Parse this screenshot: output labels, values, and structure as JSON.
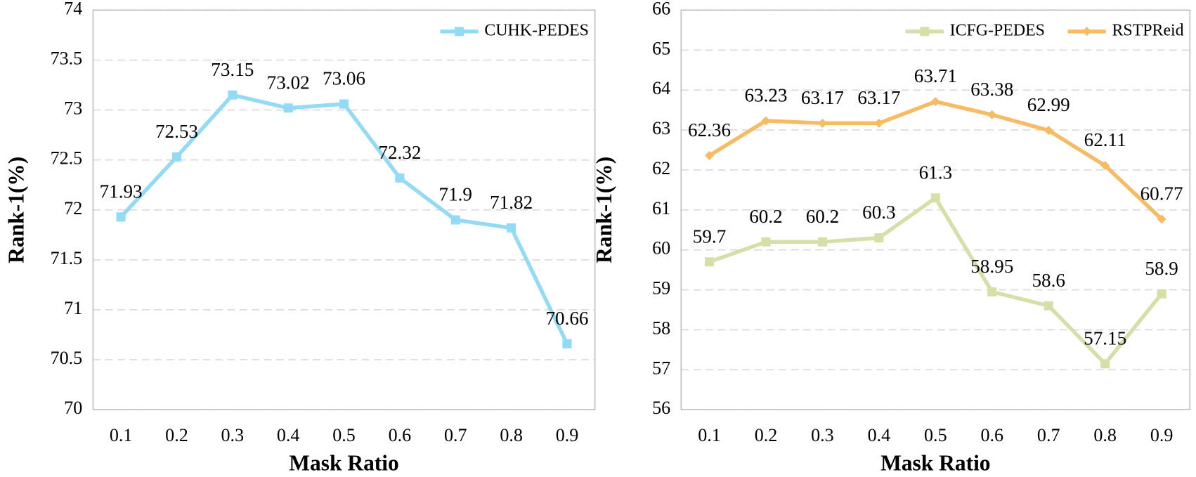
{
  "chart_data": [
    {
      "type": "line",
      "ylabel": "Rank-1(%)",
      "xlabel": "Mask Ratio",
      "categories": [
        "0.1",
        "0.2",
        "0.3",
        "0.4",
        "0.5",
        "0.6",
        "0.7",
        "0.8",
        "0.9"
      ],
      "series": [
        {
          "name": "CUHK-PEDES",
          "color": "#92daf5",
          "marker": "square",
          "values": [
            71.93,
            72.53,
            73.15,
            73.02,
            73.06,
            72.32,
            71.9,
            71.82,
            70.66
          ]
        }
      ],
      "ylim": [
        70,
        74
      ],
      "yticks": [
        70,
        70.5,
        71,
        71.5,
        72,
        72.5,
        73,
        73.5,
        74
      ],
      "grid": true,
      "legend": "upper right"
    },
    {
      "type": "line",
      "ylabel": "Rank-1(%)",
      "xlabel": "Mask Ratio",
      "categories": [
        "0.1",
        "0.2",
        "0.3",
        "0.4",
        "0.5",
        "0.6",
        "0.7",
        "0.8",
        "0.9"
      ],
      "series": [
        {
          "name": "ICFG-PEDES",
          "color": "#d6dfa8",
          "marker": "square",
          "values": [
            59.7,
            60.2,
            60.2,
            60.3,
            61.3,
            58.95,
            58.6,
            57.15,
            58.9
          ]
        },
        {
          "name": "RSTPReid",
          "color": "#f6bb63",
          "marker": "diamond",
          "values": [
            62.36,
            63.23,
            63.17,
            63.17,
            63.71,
            63.38,
            62.99,
            62.11,
            60.77
          ]
        }
      ],
      "ylim": [
        56,
        66
      ],
      "yticks": [
        56,
        57,
        58,
        59,
        60,
        61,
        62,
        63,
        64,
        65,
        66
      ],
      "grid": true,
      "legend": "upper right"
    }
  ]
}
